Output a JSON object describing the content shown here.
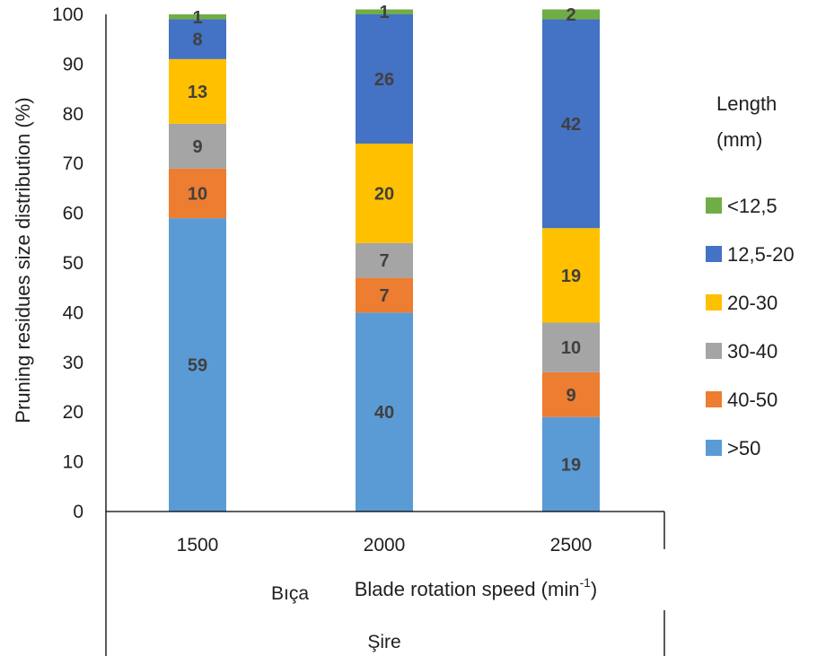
{
  "chart_data": {
    "type": "bar",
    "stacked": true,
    "categories": [
      "1500",
      "2000",
      "2500"
    ],
    "series": [
      {
        "name": ">50",
        "color": "#5b9bd5",
        "values": [
          59,
          40,
          19
        ]
      },
      {
        "name": "40-50",
        "color": "#ed7d31",
        "values": [
          10,
          7,
          9
        ]
      },
      {
        "name": "30-40",
        "color": "#a5a5a5",
        "values": [
          9,
          7,
          10
        ]
      },
      {
        "name": "20-30",
        "color": "#ffc000",
        "values": [
          13,
          20,
          19
        ]
      },
      {
        "name": "12,5-20",
        "color": "#4472c4",
        "values": [
          8,
          26,
          42
        ]
      },
      {
        "name": "<12,5",
        "color": "#70ad47",
        "values": [
          1,
          1,
          2
        ]
      }
    ],
    "ylabel": "Pruning residues size distribution  (%)",
    "xlabel_prefix": "Blade rotation speed (min",
    "xlabel_sup": "-1",
    "xlabel_suffix": ")",
    "ylim": [
      0,
      100
    ],
    "yticks": [
      0,
      10,
      20,
      30,
      40,
      50,
      60,
      70,
      80,
      90,
      100
    ],
    "legend_title_line1": "Length",
    "legend_title_line2": "(mm)",
    "legend_position": "right",
    "grid": false,
    "residual_label_1": "Bıça",
    "residual_label_2": "Şire"
  }
}
